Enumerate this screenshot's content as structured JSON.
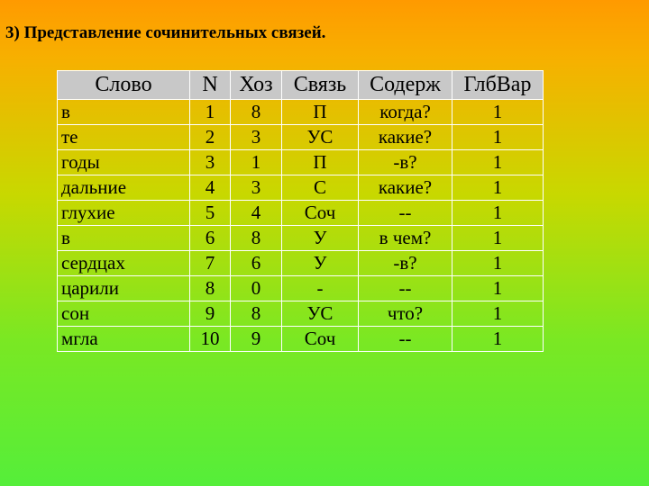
{
  "slide": {
    "title": "3) Представление сочинительных связей."
  },
  "table": {
    "headers": [
      "Слово",
      "N",
      "Хоз",
      "Связь",
      "Содерж",
      "ГлбВар"
    ],
    "rows": [
      [
        "в",
        "1",
        "8",
        "П",
        "когда?",
        "1"
      ],
      [
        "те",
        "2",
        "3",
        "УС",
        "какие?",
        "1"
      ],
      [
        "годы",
        "3",
        "1",
        "П",
        "-в?",
        "1"
      ],
      [
        "дальние",
        "4",
        "3",
        "С",
        "какие?",
        "1"
      ],
      [
        "глухие",
        "5",
        "4",
        "Соч",
        "--",
        "1"
      ],
      [
        "в",
        "6",
        "8",
        "У",
        "в чем?",
        "1"
      ],
      [
        "сердцах",
        "7",
        "6",
        "У",
        "-в?",
        "1"
      ],
      [
        "царили",
        "8",
        "0",
        "-",
        "--",
        "1"
      ],
      [
        "сон",
        "9",
        "8",
        "УС",
        "что?",
        "1"
      ],
      [
        "мгла",
        "10",
        "9",
        "Соч",
        "--",
        "1"
      ]
    ]
  }
}
